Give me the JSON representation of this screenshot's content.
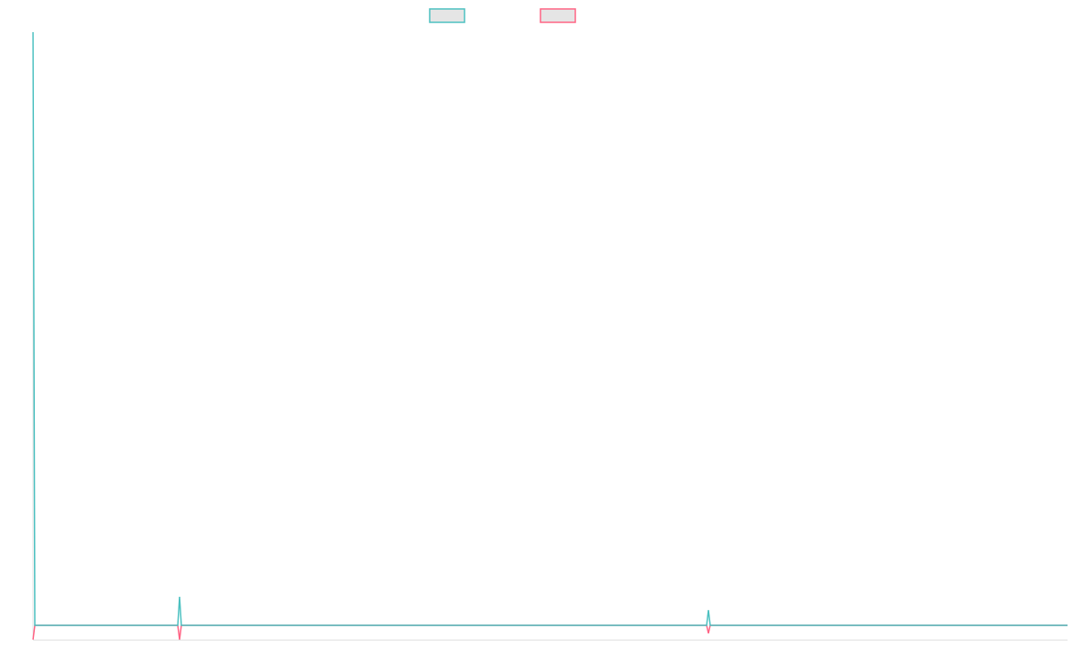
{
  "chart_data": {
    "type": "line",
    "title": "",
    "xlabel": "",
    "ylabel": "",
    "xlim": [
      0,
      579
    ],
    "ylim": [
      0,
      100
    ],
    "grid": false,
    "legend": "top",
    "series": [
      {
        "color": "#4bc0c0",
        "points": [
          [
            0,
            100
          ],
          [
            1,
            2.35
          ],
          [
            81,
            2.35
          ],
          [
            82,
            7.06
          ],
          [
            83,
            2.35
          ],
          [
            377,
            2.35
          ],
          [
            378,
            4.85
          ],
          [
            379,
            2.35
          ],
          [
            579,
            2.35
          ]
        ]
      },
      {
        "color": "#ff6384",
        "points": [
          [
            0,
            0
          ],
          [
            1,
            2.35
          ],
          [
            81,
            2.35
          ],
          [
            82,
            0
          ],
          [
            83,
            2.35
          ],
          [
            377,
            2.35
          ],
          [
            378,
            1.03
          ],
          [
            379,
            2.35
          ],
          [
            579,
            2.35
          ]
        ]
      }
    ],
    "legend_fill": "#e5e5e5",
    "axis_color": "#e0e0e0"
  }
}
